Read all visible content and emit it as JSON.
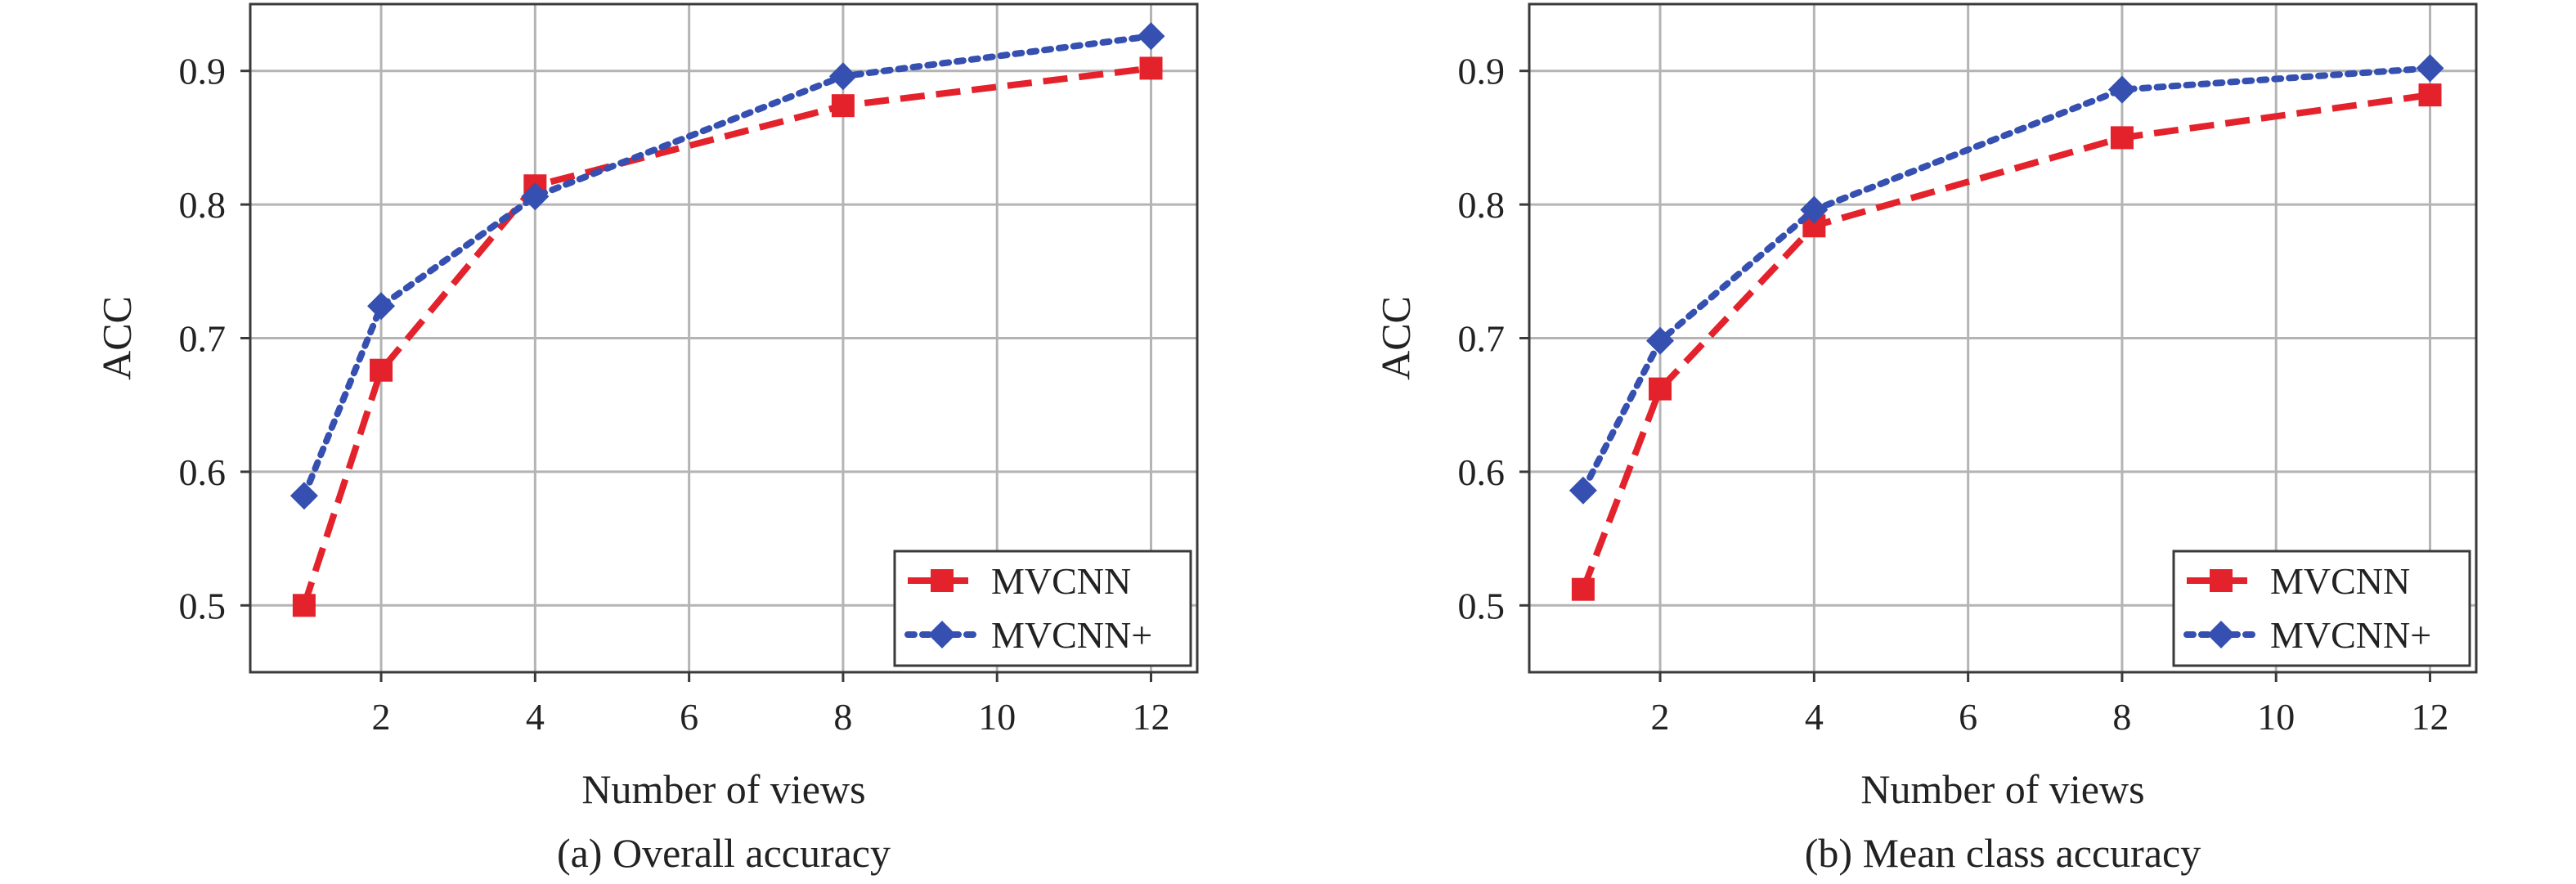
{
  "chart_data": [
    {
      "type": "line",
      "caption": "(a) Overall accuracy",
      "xlabel": "Number of views",
      "ylabel": "ACC",
      "xlim": [
        0.3,
        12.6
      ],
      "ylim": [
        0.45,
        0.95
      ],
      "xticks": [
        2,
        4,
        6,
        8,
        10,
        12
      ],
      "yticks": [
        0.5,
        0.6,
        0.7,
        0.8,
        0.9
      ],
      "grid": true,
      "legend_position": "bottom-right",
      "x": [
        1,
        2,
        4,
        8,
        12
      ],
      "series": [
        {
          "name": "MVCNN",
          "values": [
            0.5,
            0.676,
            0.814,
            0.874,
            0.902
          ],
          "color": "#e3222b",
          "line_style": "dashed",
          "marker": "square"
        },
        {
          "name": "MVCNN+",
          "values": [
            0.582,
            0.724,
            0.806,
            0.896,
            0.926
          ],
          "color": "#3550b0",
          "line_style": "dotted",
          "marker": "diamond"
        }
      ]
    },
    {
      "type": "line",
      "caption": "(b) Mean class accuracy",
      "xlabel": "Number of views",
      "ylabel": "ACC",
      "xlim": [
        0.3,
        12.6
      ],
      "ylim": [
        0.45,
        0.95
      ],
      "xticks": [
        2,
        4,
        6,
        8,
        10,
        12
      ],
      "yticks": [
        0.5,
        0.6,
        0.7,
        0.8,
        0.9
      ],
      "grid": true,
      "legend_position": "bottom-right",
      "x": [
        1,
        2,
        4,
        8,
        12
      ],
      "series": [
        {
          "name": "MVCNN",
          "values": [
            0.512,
            0.662,
            0.784,
            0.85,
            0.882
          ],
          "color": "#e3222b",
          "line_style": "dashed",
          "marker": "square"
        },
        {
          "name": "MVCNN+",
          "values": [
            0.586,
            0.698,
            0.796,
            0.886,
            0.902
          ],
          "color": "#3550b0",
          "line_style": "dotted",
          "marker": "diamond"
        }
      ]
    }
  ]
}
